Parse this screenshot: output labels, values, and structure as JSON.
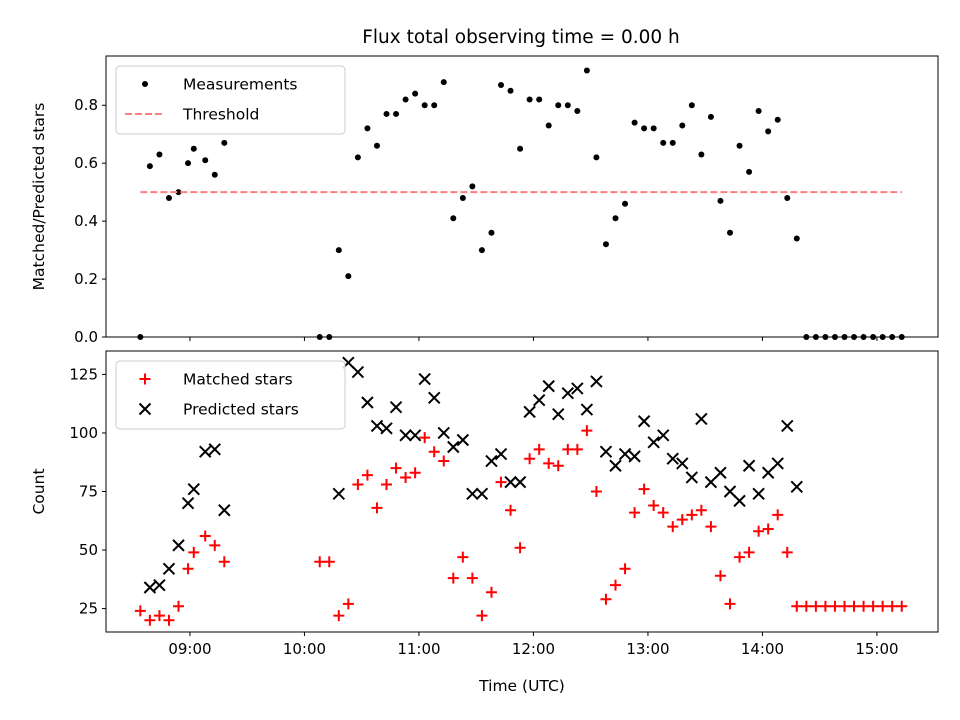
{
  "chart_data": [
    {
      "type": "scatter",
      "title": "Flux total observing time = 0.00 h",
      "xlabel": "",
      "ylabel": "Matched/Predicted stars",
      "xlim": [
        "08:16",
        "15:32"
      ],
      "ylim": [
        0,
        0.97
      ],
      "yticks": [
        "0.0",
        "0.2",
        "0.4",
        "0.6",
        "0.8"
      ],
      "legend_position": "top-left",
      "series": [
        {
          "name": "Measurements",
          "marker": "dot",
          "color": "#000000",
          "points": [
            [
              "08:34",
              0.0
            ],
            [
              "08:39",
              0.59
            ],
            [
              "08:44",
              0.63
            ],
            [
              "08:49",
              0.48
            ],
            [
              "08:54",
              0.5
            ],
            [
              "08:59",
              0.6
            ],
            [
              "09:02",
              0.65
            ],
            [
              "09:08",
              0.61
            ],
            [
              "09:13",
              0.56
            ],
            [
              "09:18",
              0.67
            ],
            [
              "10:08",
              0.0
            ],
            [
              "10:13",
              0.0
            ],
            [
              "10:18",
              0.3
            ],
            [
              "10:23",
              0.21
            ],
            [
              "10:28",
              0.62
            ],
            [
              "10:33",
              0.72
            ],
            [
              "10:38",
              0.66
            ],
            [
              "10:43",
              0.77
            ],
            [
              "10:48",
              0.77
            ],
            [
              "10:53",
              0.82
            ],
            [
              "10:58",
              0.84
            ],
            [
              "11:03",
              0.8
            ],
            [
              "11:08",
              0.8
            ],
            [
              "11:13",
              0.88
            ],
            [
              "11:18",
              0.41
            ],
            [
              "11:23",
              0.48
            ],
            [
              "11:28",
              0.52
            ],
            [
              "11:33",
              0.3
            ],
            [
              "11:38",
              0.36
            ],
            [
              "11:43",
              0.87
            ],
            [
              "11:48",
              0.85
            ],
            [
              "11:53",
              0.65
            ],
            [
              "11:58",
              0.82
            ],
            [
              "12:03",
              0.82
            ],
            [
              "12:08",
              0.73
            ],
            [
              "12:13",
              0.8
            ],
            [
              "12:18",
              0.8
            ],
            [
              "12:23",
              0.78
            ],
            [
              "12:28",
              0.92
            ],
            [
              "12:33",
              0.62
            ],
            [
              "12:38",
              0.32
            ],
            [
              "12:43",
              0.41
            ],
            [
              "12:48",
              0.46
            ],
            [
              "12:53",
              0.74
            ],
            [
              "12:58",
              0.72
            ],
            [
              "13:03",
              0.72
            ],
            [
              "13:08",
              0.67
            ],
            [
              "13:13",
              0.67
            ],
            [
              "13:18",
              0.73
            ],
            [
              "13:23",
              0.8
            ],
            [
              "13:28",
              0.63
            ],
            [
              "13:33",
              0.76
            ],
            [
              "13:38",
              0.47
            ],
            [
              "13:43",
              0.36
            ],
            [
              "13:48",
              0.66
            ],
            [
              "13:53",
              0.57
            ],
            [
              "13:58",
              0.78
            ],
            [
              "14:03",
              0.71
            ],
            [
              "14:08",
              0.75
            ],
            [
              "14:13",
              0.48
            ],
            [
              "14:18",
              0.34
            ],
            [
              "14:23",
              0.0
            ],
            [
              "14:28",
              0.0
            ],
            [
              "14:33",
              0.0
            ],
            [
              "14:38",
              0.0
            ],
            [
              "14:43",
              0.0
            ],
            [
              "14:48",
              0.0
            ],
            [
              "14:53",
              0.0
            ],
            [
              "14:58",
              0.0
            ],
            [
              "15:03",
              0.0
            ],
            [
              "15:08",
              0.0
            ],
            [
              "15:13",
              0.0
            ]
          ]
        },
        {
          "name": "Threshold",
          "type": "line",
          "style": "dashed",
          "color": "#ff7f7f",
          "points": [
            [
              "08:34",
              0.5
            ],
            [
              "15:13",
              0.5
            ]
          ]
        }
      ]
    },
    {
      "type": "scatter",
      "title": "",
      "xlabel": "Time (UTC)",
      "ylabel": "Count",
      "xlim": [
        "08:16",
        "15:32"
      ],
      "ylim": [
        15,
        135
      ],
      "yticks": [
        "25",
        "50",
        "75",
        "100",
        "125"
      ],
      "xticks": [
        "09:00",
        "10:00",
        "11:00",
        "12:00",
        "13:00",
        "14:00",
        "15:00"
      ],
      "legend_position": "top-left",
      "series": [
        {
          "name": "Matched stars",
          "marker": "plus",
          "color": "#ff0000",
          "points": [
            [
              "08:34",
              24
            ],
            [
              "08:39",
              20
            ],
            [
              "08:44",
              22
            ],
            [
              "08:49",
              20
            ],
            [
              "08:54",
              26
            ],
            [
              "08:59",
              42
            ],
            [
              "09:02",
              49
            ],
            [
              "09:08",
              56
            ],
            [
              "09:13",
              52
            ],
            [
              "09:18",
              45
            ],
            [
              "10:08",
              45
            ],
            [
              "10:13",
              45
            ],
            [
              "10:18",
              22
            ],
            [
              "10:23",
              27
            ],
            [
              "10:28",
              78
            ],
            [
              "10:33",
              82
            ],
            [
              "10:38",
              68
            ],
            [
              "10:43",
              78
            ],
            [
              "10:48",
              85
            ],
            [
              "10:53",
              81
            ],
            [
              "10:58",
              83
            ],
            [
              "11:03",
              98
            ],
            [
              "11:08",
              92
            ],
            [
              "11:13",
              88
            ],
            [
              "11:18",
              38
            ],
            [
              "11:23",
              47
            ],
            [
              "11:28",
              38
            ],
            [
              "11:33",
              22
            ],
            [
              "11:38",
              32
            ],
            [
              "11:43",
              79
            ],
            [
              "11:48",
              67
            ],
            [
              "11:53",
              51
            ],
            [
              "11:58",
              89
            ],
            [
              "12:03",
              93
            ],
            [
              "12:08",
              87
            ],
            [
              "12:13",
              86
            ],
            [
              "12:18",
              93
            ],
            [
              "12:23",
              93
            ],
            [
              "12:28",
              101
            ],
            [
              "12:33",
              75
            ],
            [
              "12:38",
              29
            ],
            [
              "12:43",
              35
            ],
            [
              "12:48",
              42
            ],
            [
              "12:53",
              66
            ],
            [
              "12:58",
              76
            ],
            [
              "13:03",
              69
            ],
            [
              "13:08",
              66
            ],
            [
              "13:13",
              60
            ],
            [
              "13:18",
              63
            ],
            [
              "13:23",
              65
            ],
            [
              "13:28",
              67
            ],
            [
              "13:33",
              60
            ],
            [
              "13:38",
              39
            ],
            [
              "13:43",
              27
            ],
            [
              "13:48",
              47
            ],
            [
              "13:53",
              49
            ],
            [
              "13:58",
              58
            ],
            [
              "14:03",
              59
            ],
            [
              "14:08",
              65
            ],
            [
              "14:13",
              49
            ],
            [
              "14:18",
              26
            ],
            [
              "14:23",
              26
            ],
            [
              "14:28",
              26
            ],
            [
              "14:33",
              26
            ],
            [
              "14:38",
              26
            ],
            [
              "14:43",
              26
            ],
            [
              "14:48",
              26
            ],
            [
              "14:53",
              26
            ],
            [
              "14:58",
              26
            ],
            [
              "15:03",
              26
            ],
            [
              "15:08",
              26
            ],
            [
              "15:13",
              26
            ]
          ]
        },
        {
          "name": "Predicted stars",
          "marker": "x",
          "color": "#000000",
          "points": [
            [
              "08:39",
              34
            ],
            [
              "08:44",
              35
            ],
            [
              "08:49",
              42
            ],
            [
              "08:54",
              52
            ],
            [
              "08:59",
              70
            ],
            [
              "09:02",
              76
            ],
            [
              "09:08",
              92
            ],
            [
              "09:13",
              93
            ],
            [
              "09:18",
              67
            ],
            [
              "10:18",
              74
            ],
            [
              "10:23",
              130
            ],
            [
              "10:28",
              126
            ],
            [
              "10:33",
              113
            ],
            [
              "10:38",
              103
            ],
            [
              "10:43",
              102
            ],
            [
              "10:48",
              111
            ],
            [
              "10:53",
              99
            ],
            [
              "10:58",
              99
            ],
            [
              "11:03",
              123
            ],
            [
              "11:08",
              115
            ],
            [
              "11:13",
              100
            ],
            [
              "11:18",
              94
            ],
            [
              "11:23",
              97
            ],
            [
              "11:28",
              74
            ],
            [
              "11:33",
              74
            ],
            [
              "11:38",
              88
            ],
            [
              "11:43",
              91
            ],
            [
              "11:48",
              79
            ],
            [
              "11:53",
              79
            ],
            [
              "11:58",
              109
            ],
            [
              "12:03",
              114
            ],
            [
              "12:08",
              120
            ],
            [
              "12:13",
              108
            ],
            [
              "12:18",
              117
            ],
            [
              "12:23",
              119
            ],
            [
              "12:28",
              110
            ],
            [
              "12:33",
              122
            ],
            [
              "12:38",
              92
            ],
            [
              "12:43",
              86
            ],
            [
              "12:48",
              91
            ],
            [
              "12:53",
              90
            ],
            [
              "12:58",
              105
            ],
            [
              "13:03",
              96
            ],
            [
              "13:08",
              99
            ],
            [
              "13:13",
              89
            ],
            [
              "13:18",
              87
            ],
            [
              "13:23",
              81
            ],
            [
              "13:28",
              106
            ],
            [
              "13:33",
              79
            ],
            [
              "13:38",
              83
            ],
            [
              "13:43",
              75
            ],
            [
              "13:48",
              71
            ],
            [
              "13:53",
              86
            ],
            [
              "13:58",
              74
            ],
            [
              "14:03",
              83
            ],
            [
              "14:08",
              87
            ],
            [
              "14:13",
              103
            ],
            [
              "14:18",
              77
            ]
          ]
        }
      ]
    }
  ]
}
